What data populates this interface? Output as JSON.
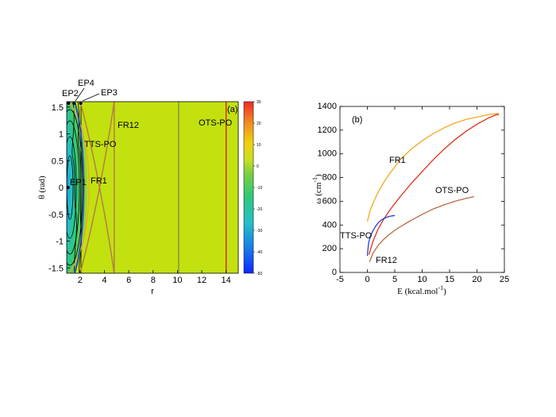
{
  "chart_data": [
    {
      "panel": "(a)",
      "type": "heatmap",
      "xlabel": "r",
      "ylabel": "θ (rad)",
      "xlim": [
        0.9,
        15
      ],
      "ylim": [
        -1.6,
        1.6
      ],
      "xticks": [
        2,
        4,
        6,
        8,
        10,
        12,
        14
      ],
      "yticks": [
        -1.5,
        -1,
        -0.5,
        0,
        0.5,
        1,
        1.5
      ],
      "colorbar": {
        "min": -50,
        "max": 30,
        "ticks": [
          30,
          20,
          10,
          0,
          -10,
          -20,
          -30,
          -40,
          -50
        ],
        "colors": [
          "#0a28ff",
          "#1a7fe8",
          "#25c0c8",
          "#30c878",
          "#7ad040",
          "#c8e020",
          "#f0d010",
          "#f08a20",
          "#f02a2a"
        ]
      },
      "background_color": "#c2e10f",
      "curves": [
        {
          "name": "FR12",
          "color": "#b5784a"
        },
        {
          "name": "FR1",
          "color": "#f0a830"
        },
        {
          "name": "TTS-PO",
          "color": "#1a3ad0"
        },
        {
          "name": "OTS-PO",
          "color": "#e0201a"
        }
      ],
      "vertical_lines": [
        {
          "label": "FR12",
          "r": 4.8,
          "color": "#b5784a"
        },
        {
          "label": "",
          "r": 10.1,
          "color": "#8a8a50"
        },
        {
          "label": "OTS-PO",
          "r": 14.0,
          "color": "#e0201a"
        }
      ],
      "points": [
        {
          "label": "EP1",
          "r": 1.0,
          "theta": 0.0
        },
        {
          "label": "EP2",
          "r": 1.05,
          "theta": 1.57
        },
        {
          "label": "EP4",
          "r": 1.5,
          "theta": 1.57
        },
        {
          "label": "EP3",
          "r": 2.05,
          "theta": 1.57
        }
      ],
      "annotations": [
        "EP1",
        "EP2",
        "EP3",
        "EP4",
        "TTS-PO",
        "FR1",
        "FR12",
        "OTS-PO"
      ]
    },
    {
      "panel": "(b)",
      "type": "line",
      "xlabel": "E (kcal.mol",
      "xlabel_sup": "-1",
      "xlabel_end": ")",
      "ylabel": "ω (cm",
      "ylabel_sup": "-1",
      "ylabel_end": ")",
      "xlim": [
        -5,
        25
      ],
      "ylim": [
        0,
        1400
      ],
      "xticks": [
        -5,
        0,
        5,
        10,
        15,
        20,
        25
      ],
      "yticks": [
        0,
        200,
        400,
        600,
        800,
        1000,
        1200,
        1400
      ],
      "series": [
        {
          "name": "FR1",
          "color": "#f0a820",
          "x": [
            0,
            0.5,
            1,
            2,
            3,
            4,
            5,
            6,
            8,
            10,
            12,
            14,
            16,
            18,
            20,
            22,
            23.5,
            24
          ],
          "y": [
            430,
            520,
            580,
            680,
            760,
            830,
            890,
            950,
            1040,
            1110,
            1170,
            1220,
            1260,
            1290,
            1310,
            1330,
            1340,
            1320
          ]
        },
        {
          "name": "OTS-PO",
          "color": "#e0301a",
          "x": [
            0.3,
            1,
            2,
            3,
            4,
            5,
            6,
            8,
            10,
            12,
            14,
            16,
            18,
            20,
            22,
            23,
            24
          ],
          "y": [
            150,
            260,
            370,
            450,
            520,
            580,
            640,
            750,
            850,
            950,
            1040,
            1120,
            1190,
            1250,
            1300,
            1320,
            1340
          ]
        },
        {
          "name": "FR12",
          "color": "#b86a44",
          "x": [
            0.4,
            1,
            2,
            3,
            4,
            5,
            6,
            8,
            10,
            12,
            14,
            16,
            18,
            19.5
          ],
          "y": [
            90,
            160,
            230,
            280,
            320,
            355,
            385,
            440,
            490,
            535,
            570,
            600,
            625,
            640
          ]
        },
        {
          "name": "TTS-PO",
          "color": "#2040d8",
          "x": [
            0,
            0.2,
            0.5,
            1,
            1.5,
            2,
            2.5,
            3,
            3.5,
            4,
            4.5,
            5
          ],
          "y": [
            140,
            240,
            300,
            350,
            390,
            420,
            440,
            455,
            465,
            472,
            477,
            480
          ]
        }
      ],
      "annotations": [
        {
          "text": "FR1",
          "color": "#f0a820"
        },
        {
          "text": "OTS-PO",
          "color": "#e0301a"
        },
        {
          "text": "TTS-PO",
          "color": "#2040d8"
        },
        {
          "text": "FR12",
          "color": "#b86a44"
        }
      ]
    }
  ]
}
